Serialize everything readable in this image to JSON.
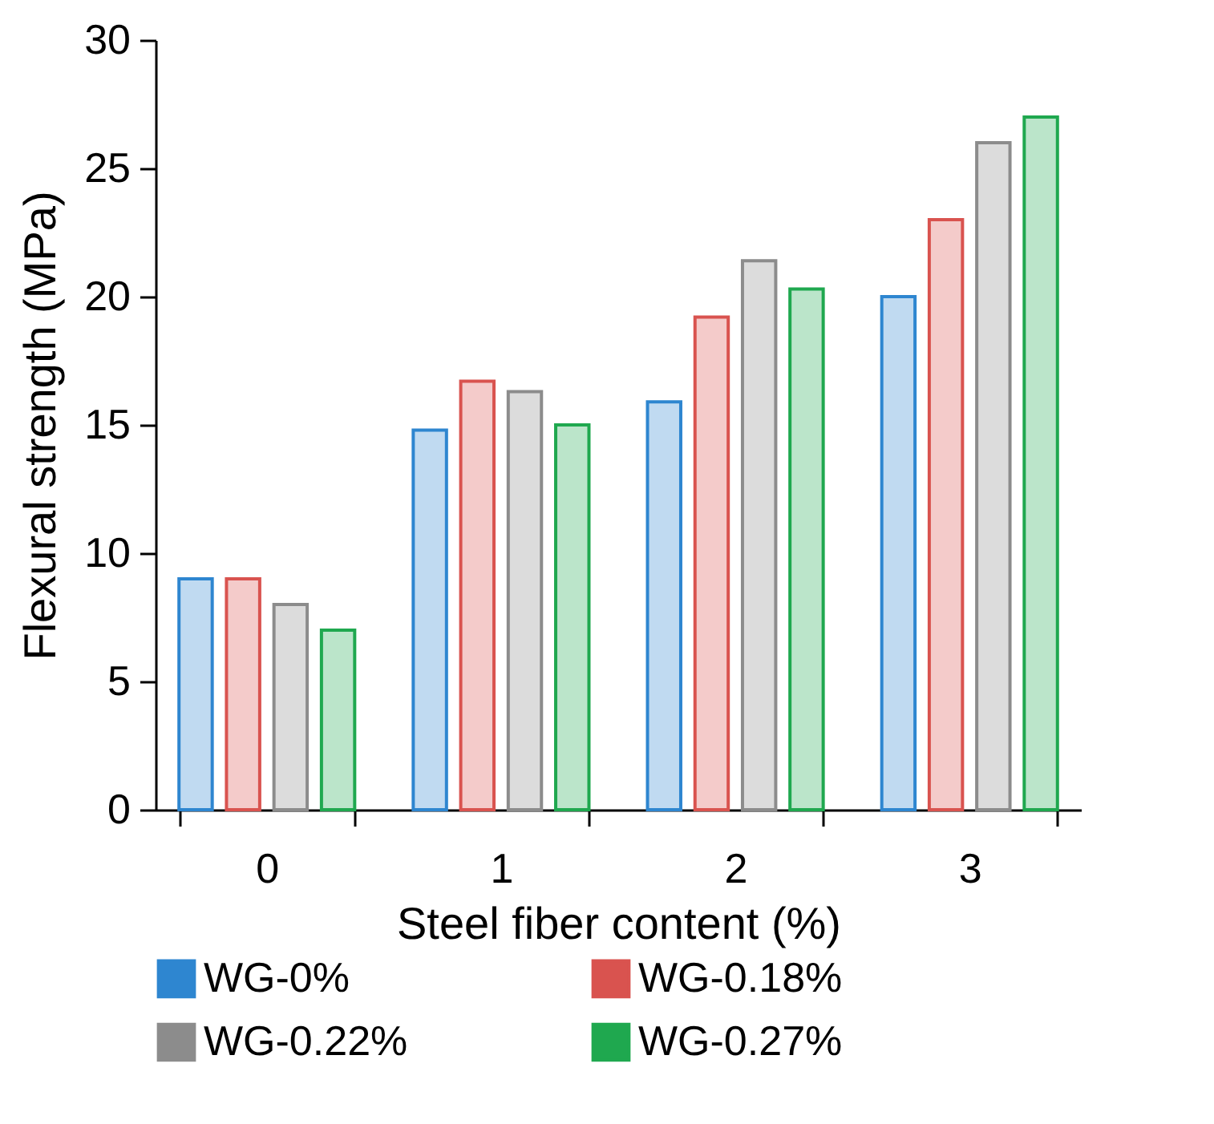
{
  "chart_data": {
    "type": "bar",
    "xlabel": "Steel fiber content (%)",
    "ylabel": "Flexural strength (MPa)",
    "categories": [
      "0",
      "1",
      "2",
      "3"
    ],
    "series": [
      {
        "name": "WG-0%",
        "color": "#2e86d0",
        "values": [
          9,
          14.8,
          15.9,
          20
        ]
      },
      {
        "name": "WG-0.18%",
        "color": "#d9534f",
        "values": [
          9,
          16.7,
          19.2,
          23
        ]
      },
      {
        "name": "WG-0.22%",
        "color": "#8c8c8c",
        "values": [
          8,
          16.3,
          21.4,
          26
        ]
      },
      {
        "name": "WG-0.27%",
        "color": "#1fa84f",
        "values": [
          7,
          15,
          20.3,
          27
        ]
      }
    ],
    "ylim": [
      0,
      30
    ],
    "yticks": [
      0,
      5,
      10,
      15,
      20,
      25,
      30
    ],
    "grid": false,
    "legend": "bottom"
  }
}
